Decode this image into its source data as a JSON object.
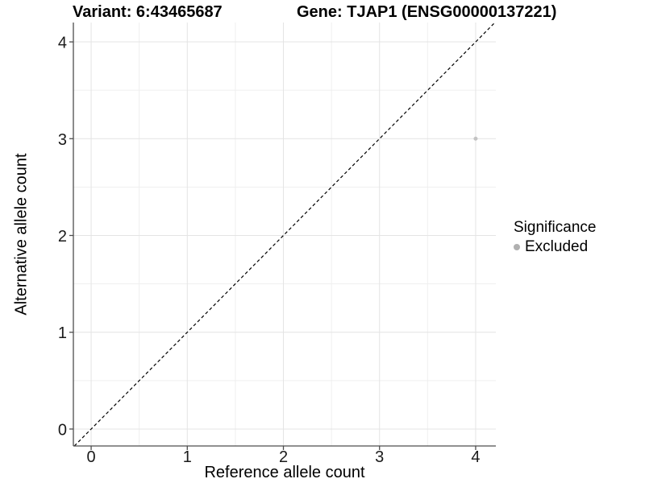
{
  "titles": {
    "variant": "Variant: 6:43465687",
    "gene": "Gene: TJAP1 (ENSG00000137221)"
  },
  "axes": {
    "x_label": "Reference allele count",
    "y_label": "Alternative allele count"
  },
  "legend": {
    "title": "Significance",
    "items": [
      {
        "label": "Excluded",
        "color": "#b0b0b0"
      }
    ]
  },
  "colors": {
    "background": "#ffffff",
    "axis_line": "#4d4d4d",
    "tick_mark": "#4d4d4d",
    "tick_label": "#1a1a1a",
    "grid_major": "#e4e4e4",
    "grid_minor": "#efefef",
    "reference_line": "#000000",
    "point": "#c3c3c3"
  },
  "chart_data": {
    "type": "scatter",
    "title": "Variant: 6:43465687 | Gene: TJAP1 (ENSG00000137221)",
    "xlabel": "Reference allele count",
    "ylabel": "Alternative allele count",
    "xlim": [
      -0.185,
      4.21
    ],
    "ylim": [
      -0.175,
      4.2
    ],
    "x_ticks": [
      0,
      1,
      2,
      3,
      4
    ],
    "y_ticks": [
      0,
      1,
      2,
      3,
      4
    ],
    "grid": true,
    "minor_gridlines": true,
    "legend_position": "right",
    "series": [
      {
        "name": "Excluded",
        "color": "#c3c3c3",
        "point_radius": 2.5,
        "points": [
          {
            "x": 4,
            "y": 3
          }
        ]
      }
    ],
    "reference_line": {
      "type": "identity",
      "slope": 1,
      "intercept": 0,
      "style": "dashed",
      "color": "#000000"
    }
  }
}
